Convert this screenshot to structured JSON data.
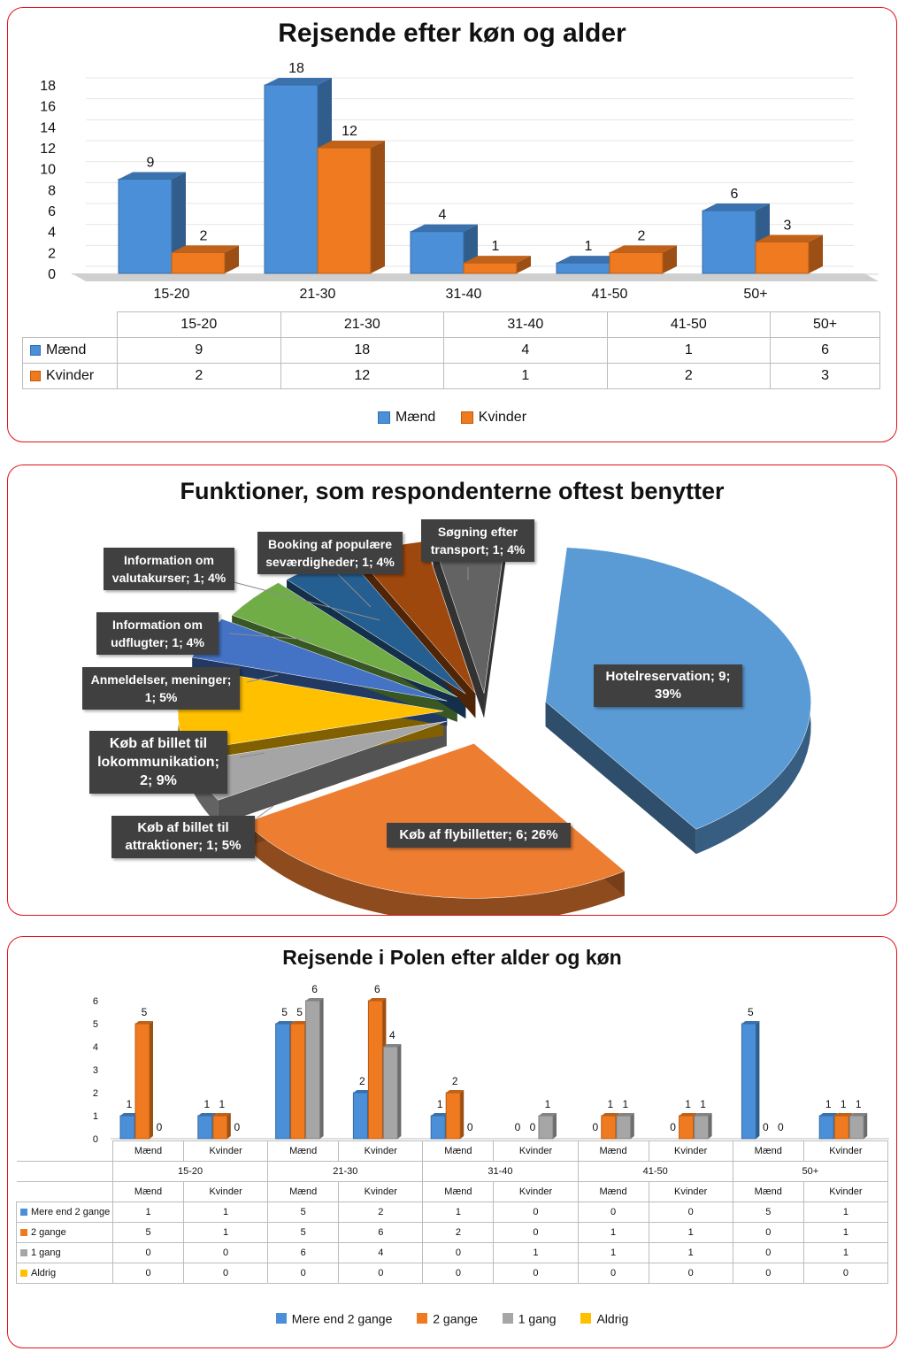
{
  "colors": {
    "blue": "#4a8fd8",
    "orange": "#f07a20",
    "gray": "#a6a6a6",
    "yellow": "#ffc000"
  },
  "chart_data": [
    {
      "type": "bar",
      "title": "Rejsende efter køn og alder",
      "categories": [
        "15-20",
        "21-30",
        "31-40",
        "41-50",
        "50+"
      ],
      "series": [
        {
          "name": "Mænd",
          "values": [
            9,
            18,
            4,
            1,
            6
          ],
          "color": "#4a8fd8"
        },
        {
          "name": "Kvinder",
          "values": [
            2,
            12,
            1,
            2,
            3
          ],
          "color": "#f07a20"
        }
      ],
      "yticks": [
        0,
        2,
        4,
        6,
        8,
        10,
        12,
        14,
        16,
        18
      ],
      "ylim": [
        0,
        18
      ],
      "legend": "bottom",
      "grid": true
    },
    {
      "type": "pie",
      "title": "Funktioner, som respondenterne oftest benytter",
      "slices": [
        {
          "name": "Hotelreservation",
          "value": 9,
          "percent": "39%",
          "label": "Hotelreservation; 9; 39%",
          "color": "#5b9bd5"
        },
        {
          "name": "Køb af flybilletter",
          "value": 6,
          "percent": "26%",
          "label": "Køb af flybilletter; 6; 26%",
          "color": "#ed7d31"
        },
        {
          "name": "Køb af billet til attraktioner",
          "value": 1,
          "percent": "5%",
          "label": "Køb af billet til attraktioner; 1; 5%",
          "color": "#a5a5a5"
        },
        {
          "name": "Køb af billet til lokommunikation",
          "value": 2,
          "percent": "9%",
          "label": "Køb af billet til lokommunikation; 2; 9%",
          "color": "#ffc000"
        },
        {
          "name": "Anmeldelser, meninger",
          "value": 1,
          "percent": "5%",
          "label": "Anmeldelser, meninger; 1; 5%",
          "color": "#4472c4"
        },
        {
          "name": "Information om udflugter",
          "value": 1,
          "percent": "4%",
          "label": "Information om udflugter; 1; 4%",
          "color": "#70ad47"
        },
        {
          "name": "Information om valutakurser",
          "value": 1,
          "percent": "4%",
          "label": "Information om valutakurser; 1; 4%",
          "color": "#255e91"
        },
        {
          "name": "Booking af populære seværdigheder",
          "value": 1,
          "percent": "4%",
          "label": "Booking af populære seværdigheder; 1; 4%",
          "color": "#9e480e"
        },
        {
          "name": "Søgning efter transport",
          "value": 1,
          "percent": "4%",
          "label": "Søgning efter transport; 1; 4%",
          "color": "#636363"
        }
      ]
    },
    {
      "type": "bar",
      "title": "Rejsende i Polen efter alder og køn",
      "age_groups": [
        "15-20",
        "21-30",
        "31-40",
        "41-50",
        "50+"
      ],
      "genders": [
        "Mænd",
        "Kvinder"
      ],
      "series": [
        {
          "name": "Mere end 2 gange",
          "values": [
            1,
            1,
            5,
            2,
            1,
            0,
            0,
            0,
            5,
            1
          ],
          "color": "#4a8fd8"
        },
        {
          "name": "2 gange",
          "values": [
            5,
            1,
            5,
            6,
            2,
            0,
            1,
            1,
            0,
            1
          ],
          "color": "#f07a20"
        },
        {
          "name": "1 gang",
          "values": [
            0,
            0,
            6,
            4,
            0,
            1,
            1,
            1,
            0,
            1
          ],
          "color": "#a6a6a6"
        },
        {
          "name": "Aldrig",
          "values": [
            0,
            0,
            0,
            0,
            0,
            0,
            0,
            0,
            0,
            0
          ],
          "color": "#ffc000"
        }
      ],
      "yticks": [
        0,
        1,
        2,
        3,
        4,
        5,
        6
      ],
      "ylim": [
        0,
        6
      ],
      "legend": "bottom"
    }
  ]
}
